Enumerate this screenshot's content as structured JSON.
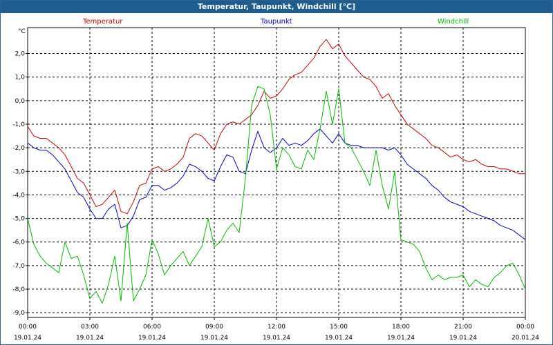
{
  "window": {
    "title": "Temperatur, Taupunkt, Windchill [°C]"
  },
  "chart_data": {
    "type": "line",
    "title": "Temperatur, Taupunkt, Windchill [°C]",
    "ylabel": "°C",
    "xlabel": "",
    "ylim": [
      -9.2,
      3.1
    ],
    "xlim": [
      0,
      24
    ],
    "grid": true,
    "legend_position": "top",
    "y_ticks": [
      "2,0",
      "1,0",
      "0,0",
      "-1,0",
      "-2,0",
      "-3,0",
      "-4,0",
      "-5,0",
      "-6,0",
      "-7,0",
      "-8,0",
      "-9,0"
    ],
    "y_tick_values": [
      2,
      1,
      0,
      -1,
      -2,
      -3,
      -4,
      -5,
      -6,
      -7,
      -8,
      -9
    ],
    "x_ticks": [
      {
        "time": "00:00",
        "date": "19.01.24"
      },
      {
        "time": "03:00",
        "date": "19.01.24"
      },
      {
        "time": "06:00",
        "date": "19.01.24"
      },
      {
        "time": "09:00",
        "date": "19.01.24"
      },
      {
        "time": "12:00",
        "date": "19.01.24"
      },
      {
        "time": "15:00",
        "date": "19.01.24"
      },
      {
        "time": "18:00",
        "date": "19.01.24"
      },
      {
        "time": "21:00",
        "date": "19.01.24"
      },
      {
        "time": "00:00",
        "date": "20.01.24"
      }
    ],
    "x_tick_values": [
      0,
      3,
      6,
      9,
      12,
      15,
      18,
      21,
      24
    ],
    "series": [
      {
        "name": "Temperatur",
        "color": "#cc0000",
        "x": [
          0,
          0.3,
          0.6,
          0.9,
          1.2,
          1.5,
          1.8,
          2.1,
          2.4,
          2.7,
          3.0,
          3.3,
          3.6,
          3.9,
          4.2,
          4.5,
          4.8,
          5.1,
          5.4,
          5.7,
          6.0,
          6.3,
          6.6,
          6.9,
          7.2,
          7.5,
          7.8,
          8.1,
          8.4,
          8.7,
          9.0,
          9.3,
          9.6,
          9.9,
          10.2,
          10.5,
          10.8,
          11.1,
          11.4,
          11.7,
          12.0,
          12.3,
          12.6,
          12.9,
          13.2,
          13.5,
          13.8,
          14.1,
          14.4,
          14.7,
          15.0,
          15.3,
          15.6,
          15.9,
          16.2,
          16.5,
          16.8,
          17.1,
          17.4,
          17.7,
          18.0,
          18.3,
          18.6,
          18.9,
          19.2,
          19.5,
          19.8,
          20.1,
          20.4,
          20.7,
          21.0,
          21.3,
          21.6,
          21.9,
          22.2,
          22.5,
          22.8,
          23.1,
          23.4,
          23.7,
          24.0
        ],
        "values": [
          -1.1,
          -1.5,
          -1.6,
          -1.6,
          -1.8,
          -2.0,
          -2.3,
          -2.8,
          -3.3,
          -3.5,
          -4.0,
          -4.5,
          -4.4,
          -4.1,
          -3.8,
          -4.7,
          -4.8,
          -4.3,
          -3.6,
          -3.5,
          -2.9,
          -2.8,
          -3.0,
          -2.9,
          -2.7,
          -2.4,
          -1.6,
          -1.4,
          -1.5,
          -1.8,
          -2.1,
          -1.4,
          -1.0,
          -0.9,
          -1.0,
          -0.8,
          -0.6,
          -0.2,
          0.4,
          0.1,
          0.2,
          0.5,
          0.9,
          1.1,
          1.2,
          1.5,
          1.8,
          2.3,
          2.6,
          2.2,
          2.4,
          1.9,
          1.6,
          1.3,
          1.0,
          0.9,
          0.6,
          0.1,
          0.3,
          -0.2,
          -0.6,
          -1.0,
          -1.2,
          -1.4,
          -1.6,
          -1.9,
          -2.0,
          -2.2,
          -2.4,
          -2.3,
          -2.5,
          -2.6,
          -2.5,
          -2.7,
          -2.8,
          -2.8,
          -2.9,
          -2.9,
          -3.0,
          -3.1,
          -3.1
        ]
      },
      {
        "name": "Taupunkt",
        "color": "#0000cc",
        "x": [
          0,
          0.3,
          0.6,
          0.9,
          1.2,
          1.5,
          1.8,
          2.1,
          2.4,
          2.7,
          3.0,
          3.3,
          3.6,
          3.9,
          4.2,
          4.5,
          4.8,
          5.1,
          5.4,
          5.7,
          6.0,
          6.3,
          6.6,
          6.9,
          7.2,
          7.5,
          7.8,
          8.1,
          8.4,
          8.7,
          9.0,
          9.3,
          9.6,
          9.9,
          10.2,
          10.5,
          10.8,
          11.1,
          11.4,
          11.7,
          12.0,
          12.3,
          12.6,
          12.9,
          13.2,
          13.5,
          13.8,
          14.1,
          14.4,
          14.7,
          15.0,
          15.3,
          15.6,
          15.9,
          16.2,
          16.5,
          16.8,
          17.1,
          17.4,
          17.7,
          18.0,
          18.3,
          18.6,
          18.9,
          19.2,
          19.5,
          19.8,
          20.1,
          20.4,
          20.7,
          21.0,
          21.3,
          21.6,
          21.9,
          22.2,
          22.5,
          22.8,
          23.1,
          23.4,
          23.7,
          24.0
        ],
        "values": [
          -1.8,
          -2.0,
          -2.1,
          -2.1,
          -2.3,
          -2.6,
          -2.9,
          -3.4,
          -3.9,
          -4.1,
          -4.6,
          -5.0,
          -5.0,
          -4.6,
          -4.4,
          -5.4,
          -5.3,
          -4.9,
          -4.2,
          -4.1,
          -3.6,
          -3.6,
          -3.8,
          -3.7,
          -3.5,
          -3.2,
          -2.7,
          -2.8,
          -3.0,
          -3.3,
          -3.4,
          -2.8,
          -2.3,
          -2.4,
          -3.0,
          -3.1,
          -2.1,
          -1.3,
          -2.0,
          -2.2,
          -2.0,
          -1.6,
          -1.9,
          -1.8,
          -1.9,
          -1.7,
          -1.4,
          -1.2,
          -1.5,
          -1.8,
          -1.4,
          -1.8,
          -1.9,
          -1.9,
          -2.0,
          -2.0,
          -2.0,
          -2.0,
          -2.1,
          -2.0,
          -2.3,
          -2.7,
          -2.9,
          -3.1,
          -3.3,
          -3.6,
          -3.8,
          -4.1,
          -4.3,
          -4.4,
          -4.5,
          -4.7,
          -4.8,
          -4.9,
          -5.0,
          -5.1,
          -5.3,
          -5.4,
          -5.5,
          -5.7,
          -5.9
        ]
      },
      {
        "name": "Windchill",
        "color": "#00bb00",
        "x": [
          0,
          0.3,
          0.6,
          0.9,
          1.2,
          1.5,
          1.8,
          2.1,
          2.4,
          2.7,
          3.0,
          3.3,
          3.6,
          3.9,
          4.2,
          4.5,
          4.8,
          5.1,
          5.4,
          5.7,
          6.0,
          6.3,
          6.6,
          6.9,
          7.2,
          7.5,
          7.8,
          8.1,
          8.4,
          8.7,
          9.0,
          9.3,
          9.6,
          9.9,
          10.2,
          10.5,
          10.8,
          11.1,
          11.4,
          11.7,
          12.0,
          12.3,
          12.6,
          12.9,
          13.2,
          13.5,
          13.8,
          14.1,
          14.4,
          14.7,
          15.0,
          15.3,
          15.6,
          15.9,
          16.2,
          16.5,
          16.8,
          17.1,
          17.4,
          17.7,
          18.0,
          18.3,
          18.6,
          18.9,
          19.2,
          19.5,
          19.8,
          20.1,
          20.4,
          20.7,
          21.0,
          21.3,
          21.6,
          21.9,
          22.2,
          22.5,
          22.8,
          23.1,
          23.4,
          23.7,
          24.0
        ],
        "values": [
          -5.0,
          -6.1,
          -6.6,
          -6.9,
          -7.1,
          -7.3,
          -6.0,
          -6.7,
          -6.6,
          -7.4,
          -8.4,
          -8.1,
          -8.6,
          -7.8,
          -6.6,
          -8.5,
          -5.2,
          -8.5,
          -8.0,
          -7.4,
          -5.9,
          -6.5,
          -7.4,
          -7.0,
          -6.7,
          -6.4,
          -7.0,
          -6.6,
          -6.2,
          -5.0,
          -6.2,
          -6.0,
          -5.5,
          -5.2,
          -5.6,
          -3.3,
          -0.2,
          0.6,
          0.5,
          -0.6,
          -2.9,
          -2.0,
          -2.3,
          -2.8,
          -2.9,
          -2.1,
          -2.5,
          -1.2,
          0.4,
          -1.0,
          0.5,
          -1.8,
          -2.0,
          -2.5,
          -3.0,
          -3.6,
          -2.1,
          -3.6,
          -4.6,
          -3.0,
          -5.9,
          -6.0,
          -6.1,
          -6.4,
          -7.1,
          -7.6,
          -7.4,
          -7.6,
          -7.5,
          -7.5,
          -7.4,
          -7.9,
          -7.6,
          -7.8,
          -7.9,
          -7.5,
          -7.3,
          -7.0,
          -6.9,
          -7.4,
          -8.0
        ]
      }
    ]
  }
}
